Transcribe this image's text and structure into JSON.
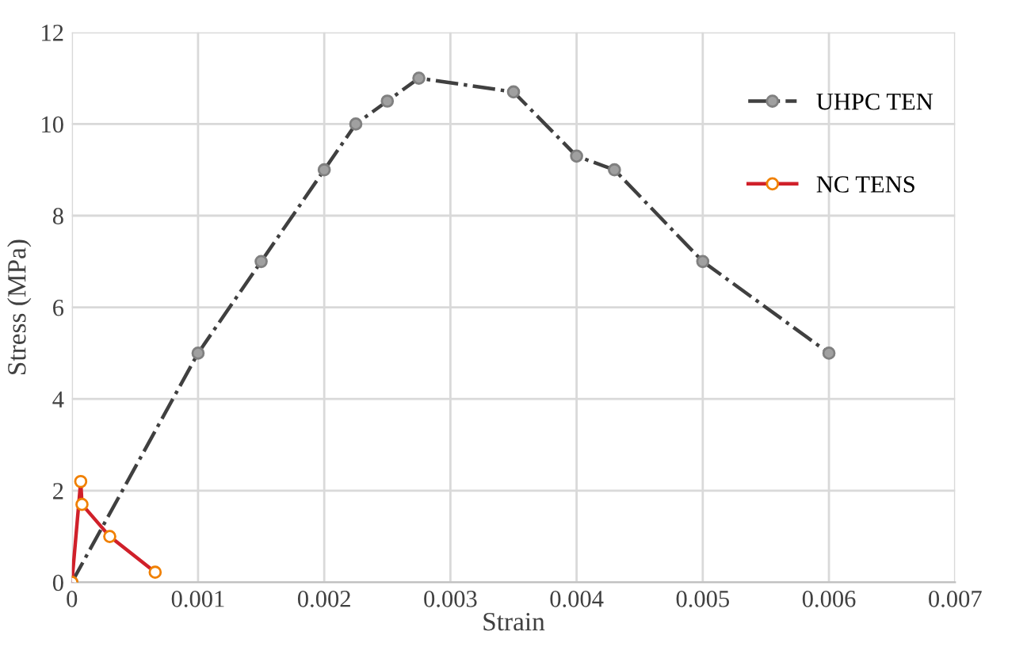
{
  "chart_data": {
    "type": "line",
    "xlabel": "Strain",
    "ylabel": "Stress (MPa)",
    "xlim": [
      0,
      0.007
    ],
    "xticks": [
      0,
      0.001,
      0.002,
      0.003,
      0.004,
      0.005,
      0.006,
      0.007
    ],
    "ylim": [
      0,
      12
    ],
    "yticks": [
      0,
      2,
      4,
      6,
      8,
      10,
      12
    ],
    "grid": true,
    "legend": "top right",
    "marker": "circle",
    "series": [
      {
        "name": "UHPC TEN",
        "color": "#404040",
        "line_style": "dashdot",
        "x": [
          0,
          0.001,
          0.0015,
          0.002,
          0.00225,
          0.0025,
          0.00275,
          0.0035,
          0.004,
          0.0043,
          0.005,
          0.006
        ],
        "values": [
          0,
          5,
          7,
          9,
          10,
          10.5,
          11,
          10.7,
          9.3,
          9,
          7,
          5
        ]
      },
      {
        "name": "NC TENS",
        "color": "#d0202a",
        "line_style": "solid",
        "x": [
          0,
          7e-05,
          8e-05,
          0.0003,
          0.00066
        ],
        "values": [
          0,
          2.2,
          1.7,
          1.0,
          0.22
        ]
      }
    ]
  }
}
